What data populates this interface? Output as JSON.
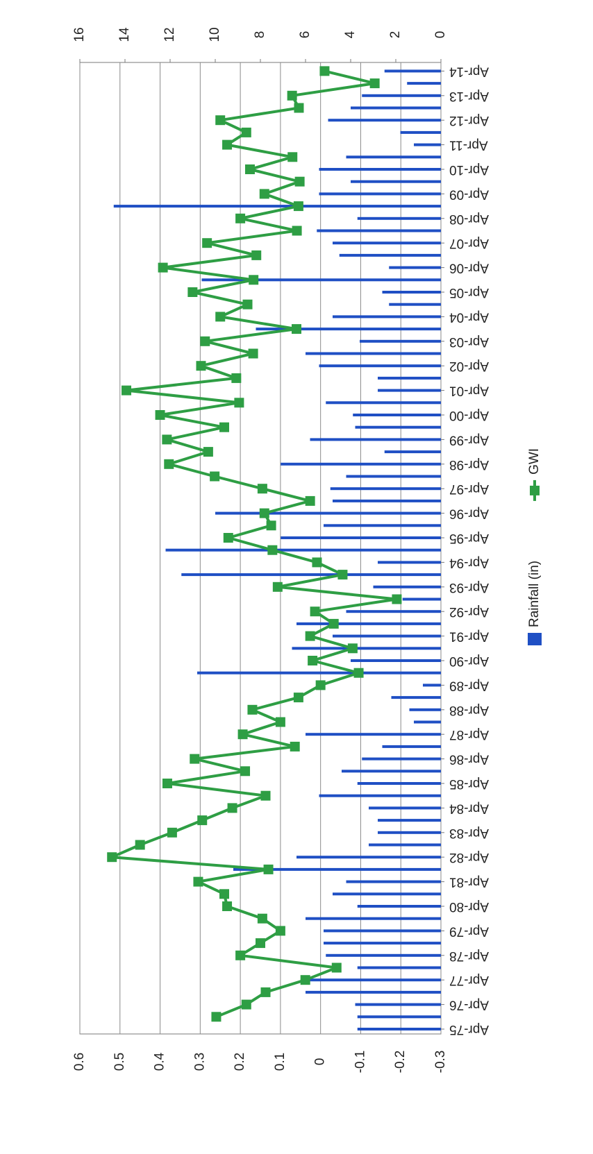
{
  "chart_data": {
    "type": "combo",
    "categories": [
      "Apr-75",
      null,
      "Apr-76",
      null,
      "Apr-77",
      null,
      "Apr-78",
      null,
      "Apr-79",
      null,
      "Apr-80",
      null,
      "Apr-81",
      null,
      "Apr-82",
      null,
      "Apr-83",
      null,
      "Apr-84",
      null,
      "Apr-85",
      null,
      "Apr-86",
      null,
      "Apr-87",
      null,
      "Apr-88",
      null,
      "Apr-89",
      null,
      "Apr-90",
      null,
      "Apr-91",
      null,
      "Apr-92",
      null,
      "Apr-93",
      null,
      "Apr-94",
      null,
      "Apr-95",
      null,
      "Apr-96",
      null,
      "Apr-97",
      null,
      "Apr-98",
      null,
      "Apr-99",
      null,
      "Apr-00",
      null,
      "Apr-01",
      null,
      "Apr-02",
      null,
      "Apr-03",
      null,
      "Apr-04",
      null,
      "Apr-05",
      null,
      "Apr-06",
      null,
      "Apr-07",
      null,
      "Apr-08",
      null,
      "Apr-09",
      null,
      "Apr-10",
      null,
      "Apr-11",
      null,
      "Apr-12",
      null,
      "Apr-13",
      null,
      "Apr-14"
    ],
    "series": [
      {
        "name": "Rainfall (in)",
        "type": "bar",
        "axis": "y2",
        "color": "#1f4fc4",
        "values": [
          3.7,
          3.7,
          3.8,
          6.0,
          5.8,
          3.7,
          5.1,
          5.2,
          5.2,
          6.0,
          3.7,
          4.8,
          4.2,
          9.2,
          6.4,
          3.2,
          2.8,
          2.8,
          3.2,
          5.4,
          3.7,
          4.4,
          3.5,
          2.6,
          6.0,
          1.2,
          1.4,
          2.2,
          0.8,
          10.8,
          4.0,
          6.6,
          4.8,
          6.4,
          4.2,
          1.7,
          3.0,
          11.5,
          2.8,
          12.2,
          7.1,
          5.2,
          10.0,
          4.8,
          4.9,
          4.2,
          7.1,
          2.5,
          5.8,
          3.8,
          3.9,
          5.1,
          2.8,
          2.8,
          5.4,
          6.0,
          3.6,
          8.2,
          4.8,
          2.3,
          2.6,
          10.6,
          2.3,
          4.5,
          4.8,
          5.5,
          3.7,
          14.5,
          5.4,
          4.0,
          5.4,
          4.2,
          1.2,
          1.8,
          5.0,
          4.0,
          3.5,
          1.5,
          2.5
        ]
      },
      {
        "name": "GWI",
        "type": "line",
        "axis": "y",
        "color": "#2e9e44",
        "values": [
          null,
          0.26,
          0.185,
          0.137,
          0.038,
          -0.04,
          0.2,
          0.15,
          0.1,
          0.145,
          0.233,
          0.24,
          0.305,
          0.13,
          0.52,
          0.45,
          0.37,
          0.295,
          0.22,
          0.137,
          0.382,
          0.188,
          0.314,
          0.064,
          0.194,
          0.1,
          0.17,
          0.055,
          0.0,
          -0.095,
          0.02,
          -0.08,
          0.026,
          -0.033,
          0.014,
          -0.19,
          0.107,
          -0.055,
          0.009,
          0.12,
          0.23,
          0.123,
          0.14,
          0.026,
          0.145,
          0.264,
          0.378,
          0.28,
          0.383,
          0.24,
          0.4,
          0.203,
          0.484,
          0.21,
          0.298,
          0.168,
          0.288,
          0.06,
          0.25,
          0.182,
          0.319,
          0.167,
          0.393,
          0.16,
          0.283,
          0.059,
          0.2,
          0.055,
          0.14,
          0.052,
          0.176,
          0.07,
          0.233,
          0.185,
          0.25,
          0.054,
          0.071,
          -0.135,
          -0.01
        ]
      }
    ],
    "ylim": [
      -0.3,
      0.6
    ],
    "yticks": [
      -0.3,
      -0.2,
      -0.1,
      0,
      0.1,
      0.2,
      0.3,
      0.4,
      0.5,
      0.6
    ],
    "y2lim": [
      0,
      16
    ],
    "y2ticks": [
      0,
      2,
      4,
      6,
      8,
      10,
      12,
      14,
      16
    ],
    "grid": true,
    "legend": "bottom"
  }
}
